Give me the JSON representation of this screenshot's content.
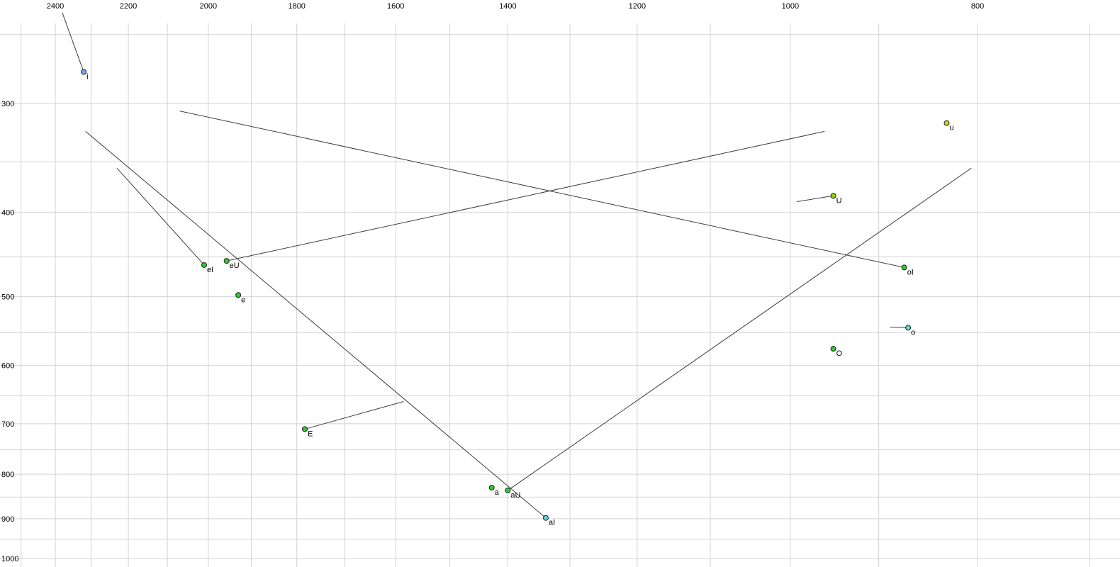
{
  "chart_data": {
    "type": "scatter",
    "title": "",
    "description": "Vowel formant plot (F2 horizontal, decreasing rightward; F1 vertical, increasing downward; log-scaled axes). Dots mark vowel nuclei; thin lines show diphthong offglide trajectories.",
    "x_axis": {
      "label": "",
      "tick_labels": [
        2400,
        2200,
        2000,
        1800,
        1600,
        1400,
        1200,
        1000,
        800
      ],
      "scale": "log",
      "direction": "decreasing-right",
      "grid_step": 100,
      "grid_min": 700,
      "grid_max": 2500
    },
    "y_axis": {
      "label": "",
      "tick_labels": [
        300,
        400,
        500,
        600,
        700,
        800,
        900,
        1000
      ],
      "scale": "log",
      "direction": "increasing-down",
      "grid_step": 50,
      "grid_min": 250,
      "grid_max": 1000
    },
    "grid": true,
    "legend": false,
    "points": [
      {
        "label": "i",
        "f2": 2320,
        "f1": 276,
        "color": "#7f9fe6",
        "glide": {
          "f2": 2380,
          "f1": 236
        }
      },
      {
        "label": "eI",
        "f2": 2010,
        "f1": 460,
        "color": "#2fcb2f",
        "glide": {
          "f2": 2230,
          "f1": 356
        }
      },
      {
        "label": "eU",
        "f2": 1957,
        "f1": 455,
        "color": "#2fcb2f",
        "glide": {
          "f2": 960,
          "f1": 323
        }
      },
      {
        "label": "e",
        "f2": 1930,
        "f1": 498,
        "color": "#2fcb2f",
        "glide": null
      },
      {
        "label": "E",
        "f2": 1783,
        "f1": 710,
        "color": "#2fcb2f",
        "glide": {
          "f2": 1585,
          "f1": 660
        }
      },
      {
        "label": "a",
        "f2": 1427,
        "f1": 829,
        "color": "#2fcb2f",
        "glide": null
      },
      {
        "label": "aU",
        "f2": 1400,
        "f1": 835,
        "color": "#2fcb2f",
        "glide": {
          "f2": 806,
          "f1": 356
        }
      },
      {
        "label": "aI",
        "f2": 1338,
        "f1": 898,
        "color": "#5fd3dd",
        "glide": {
          "f2": 2315,
          "f1": 323
        }
      },
      {
        "label": "oI",
        "f2": 873,
        "f1": 463,
        "color": "#2fcb2f",
        "glide": {
          "f2": 2070,
          "f1": 306
        }
      },
      {
        "label": "o",
        "f2": 869,
        "f1": 543,
        "color": "#5fd3dd",
        "glide": {
          "f2": 888,
          "f1": 542
        }
      },
      {
        "label": "O",
        "f2": 950,
        "f1": 574,
        "color": "#2fcb2f",
        "glide": null
      },
      {
        "label": "U",
        "f2": 950,
        "f1": 383,
        "color": "#8ed50a",
        "glide": {
          "f2": 992,
          "f1": 389
        }
      },
      {
        "label": "u",
        "f2": 830,
        "f1": 316,
        "color": "#c9d21f",
        "glide": null
      }
    ]
  },
  "colors": {
    "background": "#ffffff",
    "grid": "#d2d2d2",
    "trajectory": "#3c3c3c",
    "tick_text": "#000000",
    "point_outline": "#1f1f1f"
  }
}
